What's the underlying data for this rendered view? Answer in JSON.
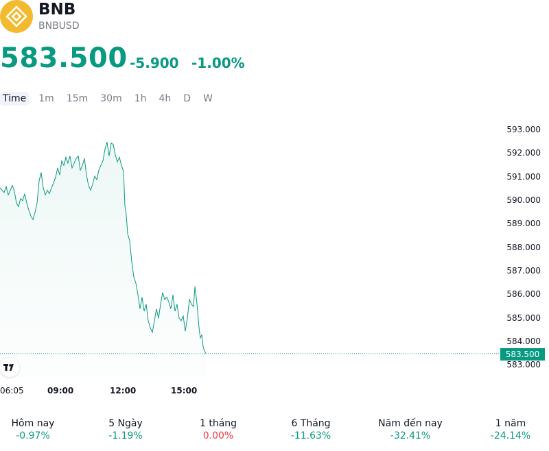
{
  "symbol": {
    "name": "BNB",
    "ticker": "BNBUSD",
    "logo_icon": "bnb-logo-icon",
    "logo_color": "#F3BA2F"
  },
  "quote": {
    "price": "583.500",
    "change": "-5.900",
    "change_pct": "-1.00%",
    "color": "#089981"
  },
  "tabs": [
    {
      "label": "Time",
      "active": true
    },
    {
      "label": "1m"
    },
    {
      "label": "15m"
    },
    {
      "label": "30m"
    },
    {
      "label": "1h"
    },
    {
      "label": "4h"
    },
    {
      "label": "D"
    },
    {
      "label": "W"
    }
  ],
  "chart_data": {
    "type": "area",
    "y_ticks": [
      "593.000",
      "592.000",
      "591.000",
      "590.000",
      "589.000",
      "588.000",
      "587.000",
      "586.000",
      "585.000",
      "584.000",
      "583.000"
    ],
    "ylim": [
      583,
      593
    ],
    "x_ticks": [
      {
        "label": "06:05",
        "bold": false
      },
      {
        "label": "09:00",
        "bold": true
      },
      {
        "label": "12:00",
        "bold": true
      },
      {
        "label": "15:00",
        "bold": true
      }
    ],
    "last_price_label": "583.500",
    "line_color": "#089981",
    "points": [
      [
        0,
        590.55
      ],
      [
        3,
        590.45
      ],
      [
        6,
        590.35
      ],
      [
        9,
        590.6
      ],
      [
        12,
        590.25
      ],
      [
        15,
        590.45
      ],
      [
        18,
        590.65
      ],
      [
        21,
        590.4
      ],
      [
        24,
        589.9
      ],
      [
        27,
        589.75
      ],
      [
        30,
        590.1
      ],
      [
        33,
        590.0
      ],
      [
        36,
        590.3
      ],
      [
        39,
        589.9
      ],
      [
        42,
        589.6
      ],
      [
        45,
        589.35
      ],
      [
        48,
        589.2
      ],
      [
        51,
        589.5
      ],
      [
        54,
        589.9
      ],
      [
        57,
        590.85
      ],
      [
        60,
        591.2
      ],
      [
        63,
        590.55
      ],
      [
        66,
        590.25
      ],
      [
        69,
        590.45
      ],
      [
        72,
        590.3
      ],
      [
        75,
        590.55
      ],
      [
        78,
        590.75
      ],
      [
        81,
        591.0
      ],
      [
        84,
        591.4
      ],
      [
        87,
        591.1
      ],
      [
        90,
        591.7
      ],
      [
        93,
        591.5
      ],
      [
        96,
        591.85
      ],
      [
        99,
        591.6
      ],
      [
        102,
        591.9
      ],
      [
        105,
        591.4
      ],
      [
        108,
        591.6
      ],
      [
        111,
        591.8
      ],
      [
        114,
        591.9
      ],
      [
        117,
        591.3
      ],
      [
        120,
        591.5
      ],
      [
        123,
        591.8
      ],
      [
        126,
        591.1
      ],
      [
        129,
        590.65
      ],
      [
        132,
        590.45
      ],
      [
        135,
        590.7
      ],
      [
        138,
        591.05
      ],
      [
        141,
        590.9
      ],
      [
        144,
        591.3
      ],
      [
        147,
        591.5
      ],
      [
        150,
        591.7
      ],
      [
        153,
        592.2
      ],
      [
        156,
        592.5
      ],
      [
        159,
        591.9
      ],
      [
        162,
        592.45
      ],
      [
        165,
        592.4
      ],
      [
        168,
        591.95
      ],
      [
        171,
        591.65
      ],
      [
        174,
        591.85
      ],
      [
        177,
        591.5
      ],
      [
        180,
        591.25
      ],
      [
        182,
        589.8
      ],
      [
        184,
        589.4
      ],
      [
        186,
        588.6
      ],
      [
        189,
        588.3
      ],
      [
        192,
        587.4
      ],
      [
        195,
        586.75
      ],
      [
        198,
        586.5
      ],
      [
        201,
        586.0
      ],
      [
        204,
        585.4
      ],
      [
        207,
        585.9
      ],
      [
        210,
        585.3
      ],
      [
        213,
        585.6
      ],
      [
        216,
        584.9
      ],
      [
        219,
        584.6
      ],
      [
        222,
        584.4
      ],
      [
        225,
        584.9
      ],
      [
        228,
        585.4
      ],
      [
        231,
        585.0
      ],
      [
        234,
        585.6
      ],
      [
        237,
        586.1
      ],
      [
        240,
        585.8
      ],
      [
        243,
        585.9
      ],
      [
        246,
        585.7
      ],
      [
        249,
        585.4
      ],
      [
        252,
        586.0
      ],
      [
        255,
        585.3
      ],
      [
        258,
        585.6
      ],
      [
        261,
        585.0
      ],
      [
        264,
        584.9
      ],
      [
        267,
        585.1
      ],
      [
        270,
        584.45
      ],
      [
        273,
        585.0
      ],
      [
        276,
        585.8
      ],
      [
        279,
        585.6
      ],
      [
        282,
        585.5
      ],
      [
        284,
        586.35
      ],
      [
        286,
        585.9
      ],
      [
        288,
        585.3
      ],
      [
        290,
        584.6
      ],
      [
        292,
        584.15
      ],
      [
        294,
        584.3
      ],
      [
        296,
        583.8
      ],
      [
        298,
        583.6
      ],
      [
        300,
        583.5
      ]
    ]
  },
  "performance": [
    {
      "label": "Hôm nay",
      "value": "-0.97%",
      "color": "#089981"
    },
    {
      "label": "5 Ngày",
      "value": "-1.19%",
      "color": "#089981"
    },
    {
      "label": "1 tháng",
      "value": "0.00%",
      "color": "#f23645"
    },
    {
      "label": "6 Tháng",
      "value": "-11.63%",
      "color": "#089981"
    },
    {
      "label": "Năm đến nay",
      "value": "-32.41%",
      "color": "#089981"
    },
    {
      "label": "1 năm",
      "value": "-24.14%",
      "color": "#089981"
    }
  ]
}
